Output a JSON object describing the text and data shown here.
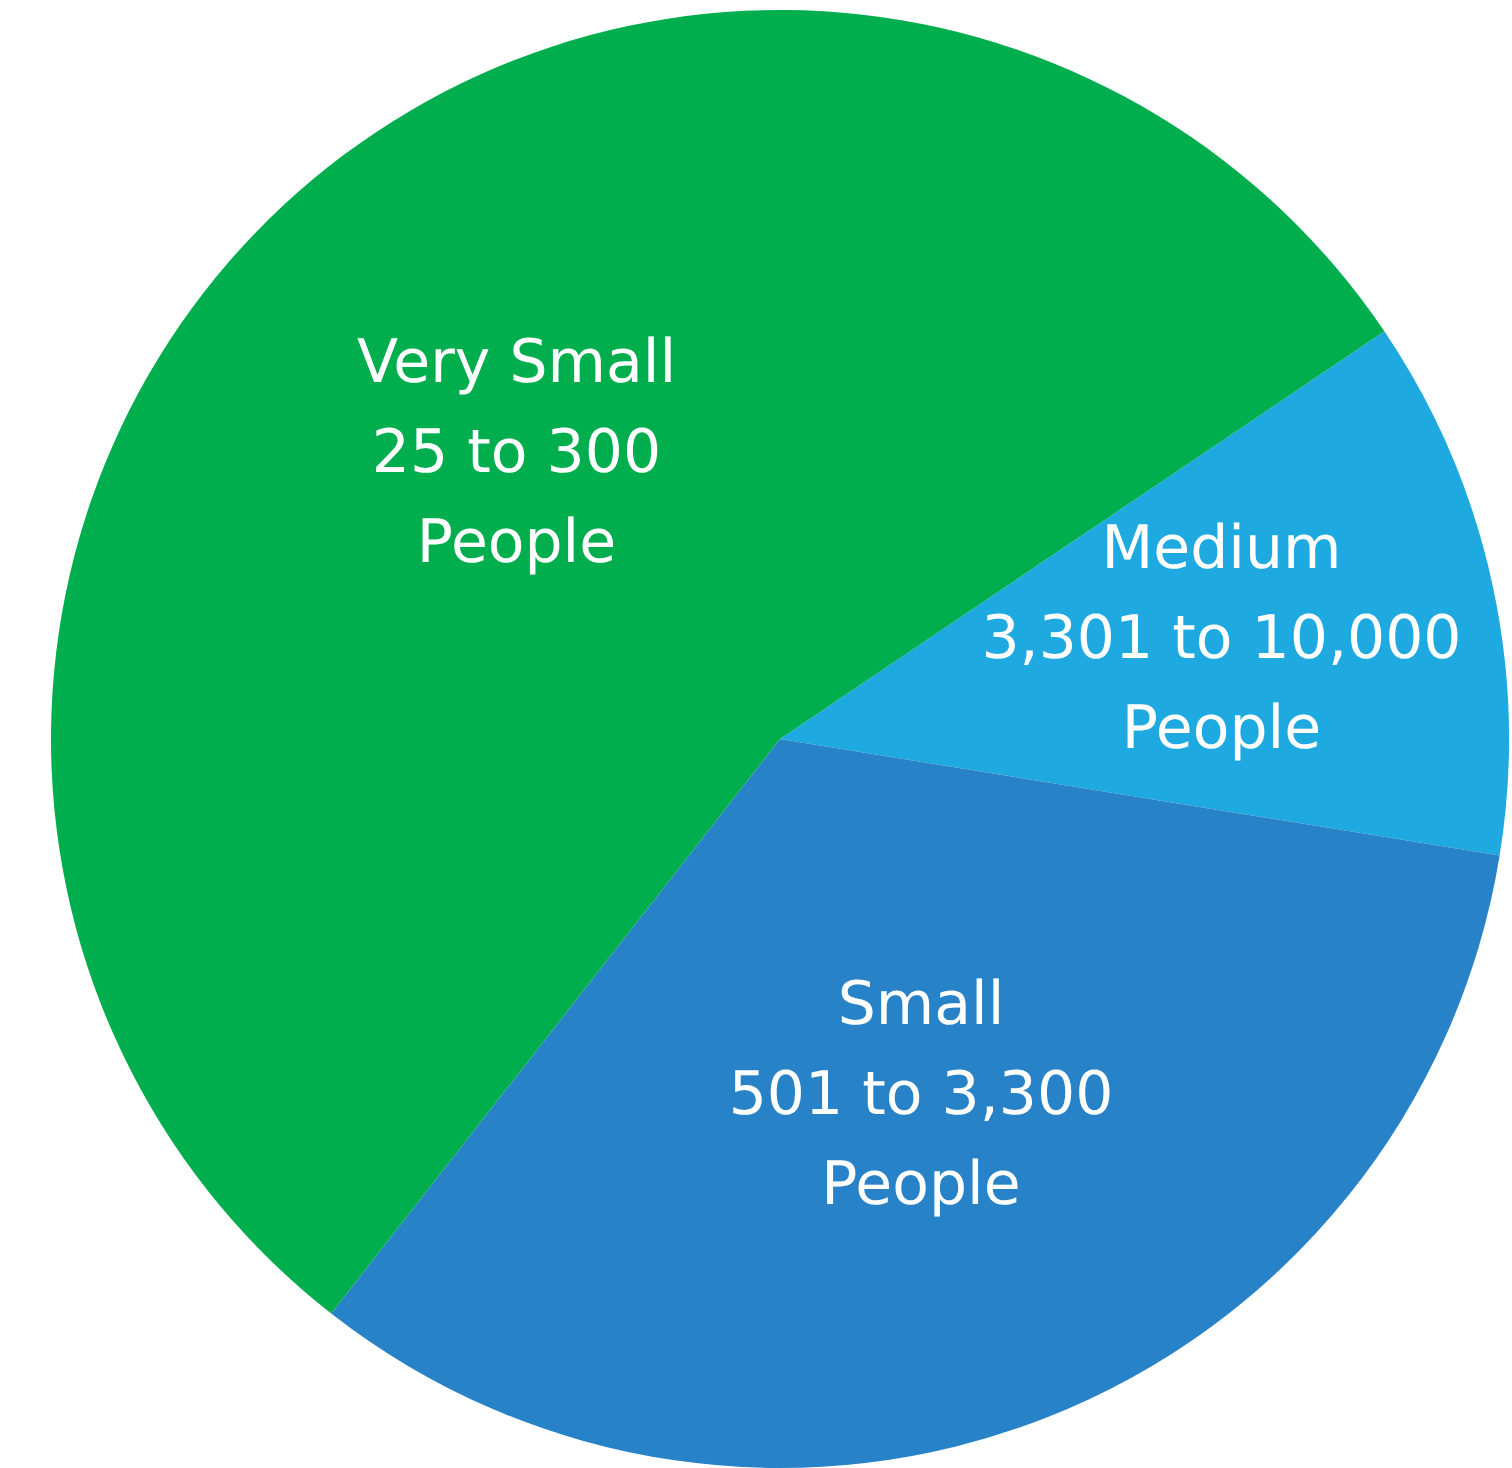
{
  "chart_data": {
    "type": "pie",
    "categories": [
      "Medium\n3,301 to 10,000\nPeople",
      "Small\n501 to 3,300\nPeople",
      "Very Small\n25 to 300\nPeople"
    ],
    "values": [
      12,
      33,
      55
    ],
    "colors": [
      "#1fa9e1",
      "#2882c8",
      "#00ae4d"
    ],
    "legend": false
  }
}
